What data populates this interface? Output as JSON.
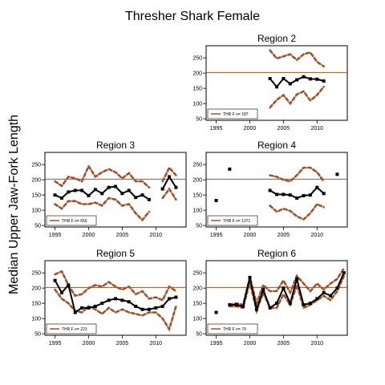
{
  "figure": {
    "title": "Thresher Shark Female",
    "ylabel": "Median Upper Jaw-Fork Length"
  },
  "colors": {
    "median": "#000000",
    "ci": "#a0522d",
    "reference_line": "#a0522d",
    "frame": "#000000"
  },
  "chart_data": [
    {
      "type": "line",
      "title": "Region 2",
      "legend": "THR F n= 187",
      "legend_position": "bottom-left",
      "xlim": [
        1993.5,
        2014.5
      ],
      "ylim": [
        45,
        290
      ],
      "xticks": [
        1995,
        2000,
        2005,
        2010
      ],
      "yticks": [
        50,
        100,
        150,
        200,
        250
      ],
      "reference_y": 202,
      "median": {
        "x": [
          2003,
          2004,
          2005,
          2006,
          2007,
          2008,
          2009,
          2010,
          2011
        ],
        "y": [
          182,
          155,
          182,
          165,
          178,
          188,
          181,
          180,
          174
        ]
      },
      "ci_upper": {
        "x": [
          2003,
          2004,
          2005,
          2006,
          2007,
          2008,
          2009,
          2010,
          2011
        ],
        "y": [
          275,
          248,
          255,
          262,
          243,
          262,
          268,
          237,
          222
        ]
      },
      "ci_lower": {
        "x": [
          2003,
          2004,
          2005,
          2006,
          2007,
          2008,
          2009,
          2010,
          2011
        ],
        "y": [
          87,
          112,
          128,
          100,
          130,
          140,
          110,
          128,
          155
        ]
      }
    },
    {
      "type": "line",
      "title": "Region 3",
      "legend": "THR F n= 656",
      "legend_position": "bottom-left",
      "xlim": [
        1993.5,
        2014.5
      ],
      "ylim": [
        45,
        290
      ],
      "xticks": [
        1995,
        2000,
        2005,
        2010
      ],
      "yticks": [
        50,
        100,
        150,
        200,
        250
      ],
      "reference_y": 202,
      "median": {
        "x": [
          1995,
          1996,
          1997,
          1998,
          1999,
          2000,
          2001,
          2002,
          2003,
          2004,
          2005,
          2006,
          2007,
          2008,
          2009,
          null,
          2011,
          2012,
          2013
        ],
        "y": [
          150,
          140,
          160,
          165,
          165,
          148,
          168,
          155,
          175,
          178,
          155,
          165,
          142,
          150,
          135,
          null,
          170,
          210,
          175
        ]
      },
      "ci_upper": {
        "x": [
          1995,
          1996,
          1997,
          1998,
          1999,
          2000,
          2001,
          2002,
          2003,
          2004,
          2005,
          2006,
          2007,
          2008,
          2009,
          null,
          2011,
          2012,
          2013
        ],
        "y": [
          195,
          180,
          210,
          205,
          195,
          245,
          210,
          225,
          235,
          225,
          205,
          222,
          195,
          195,
          175,
          null,
          195,
          240,
          215
        ]
      },
      "ci_lower": {
        "x": [
          1995,
          1996,
          1997,
          1998,
          1999,
          2000,
          2001,
          2002,
          2003,
          2004,
          2005,
          2006,
          2007,
          2008,
          2009,
          null,
          2011,
          2012,
          2013
        ],
        "y": [
          120,
          105,
          130,
          130,
          120,
          120,
          125,
          115,
          140,
          135,
          115,
          120,
          90,
          68,
          95,
          null,
          140,
          170,
          135
        ]
      }
    },
    {
      "type": "line",
      "title": "Region 4",
      "legend": "THR F n= 1371",
      "legend_position": "bottom-left",
      "xlim": [
        1993.5,
        2014.5
      ],
      "ylim": [
        45,
        290
      ],
      "xticks": [
        1995,
        2000,
        2005,
        2010
      ],
      "yticks": [
        50,
        100,
        150,
        200,
        250
      ],
      "reference_y": 202,
      "points": {
        "x": [
          1995,
          1997,
          2013
        ],
        "y": [
          132,
          235,
          218
        ]
      },
      "median": {
        "x": [
          2003,
          2004,
          2005,
          2006,
          2007,
          2008,
          2009,
          2010,
          2011
        ],
        "y": [
          165,
          152,
          152,
          150,
          140,
          148,
          150,
          175,
          155
        ]
      },
      "ci_upper": {
        "x": [
          2003,
          2004,
          2005,
          2006,
          2007,
          2008,
          2009,
          2010,
          2011
        ],
        "y": [
          215,
          210,
          200,
          195,
          215,
          240,
          240,
          225,
          195
        ]
      },
      "ci_lower": {
        "x": [
          2003,
          2004,
          2005,
          2006,
          2007,
          2008,
          2009,
          2010,
          2011
        ],
        "y": [
          115,
          95,
          105,
          98,
          80,
          70,
          90,
          120,
          110
        ]
      }
    },
    {
      "type": "line",
      "title": "Region 5",
      "legend": "THR F n= 223",
      "legend_position": "bottom-left",
      "xlim": [
        1993.5,
        2014.5
      ],
      "ylim": [
        45,
        290
      ],
      "xticks": [
        1995,
        2000,
        2005,
        2010
      ],
      "yticks": [
        50,
        100,
        150,
        200,
        250
      ],
      "reference_y": 202,
      "median": {
        "x": [
          1995,
          1996,
          1997,
          1998,
          1999,
          2000,
          2001,
          2002,
          2003,
          2004,
          2005,
          2006,
          2007,
          2008,
          2009,
          2010,
          2011,
          2012,
          2013
        ],
        "y": [
          225,
          185,
          210,
          120,
          135,
          135,
          140,
          150,
          160,
          165,
          160,
          155,
          140,
          130,
          130,
          135,
          140,
          165,
          170
        ]
      },
      "ci_upper": {
        "x": [
          1995,
          1996,
          1997,
          1998,
          1999,
          2000,
          2001,
          2002,
          2003,
          2004,
          2005,
          2006,
          2007,
          2008,
          2009,
          2010,
          2011,
          2012,
          2013
        ],
        "y": [
          245,
          255,
          210,
          175,
          180,
          200,
          210,
          205,
          220,
          205,
          195,
          205,
          180,
          190,
          165,
          170,
          160,
          205,
          190
        ]
      },
      "ci_lower": {
        "x": [
          1995,
          1996,
          1997,
          1998,
          1999,
          2000,
          2001,
          2002,
          2003,
          2004,
          2005,
          2006,
          2007,
          2008,
          2009,
          2010,
          2011,
          2012,
          2013
        ],
        "y": [
          195,
          165,
          150,
          125,
          120,
          140,
          130,
          115,
          135,
          120,
          130,
          120,
          115,
          110,
          120,
          120,
          100,
          65,
          140
        ]
      }
    },
    {
      "type": "line",
      "title": "Region 6",
      "legend": "THR F n= 79",
      "legend_position": "bottom-left",
      "xlim": [
        1993.5,
        2014.5
      ],
      "ylim": [
        45,
        290
      ],
      "xticks": [
        1995,
        2000,
        2005,
        2010
      ],
      "yticks": [
        50,
        100,
        150,
        200,
        250
      ],
      "reference_y": 202,
      "points": {
        "x": [
          1995
        ],
        "y": [
          120
        ]
      },
      "median": {
        "x": [
          1997,
          1998,
          1999,
          2000,
          2001,
          2002,
          2003,
          2004,
          2005,
          2006,
          2007,
          2008,
          2009,
          2010,
          2011,
          2012,
          2013,
          2014
        ],
        "y": [
          145,
          145,
          140,
          235,
          130,
          195,
          135,
          150,
          200,
          150,
          230,
          145,
          150,
          165,
          185,
          175,
          200,
          250
        ]
      },
      "ci_upper": {
        "x": [
          1997,
          1998,
          1999,
          2000,
          2001,
          2002,
          2003,
          2004,
          2005,
          2006,
          2007,
          2008,
          2009,
          2010,
          2011,
          2012,
          2013,
          2014
        ],
        "y": [
          145,
          150,
          145,
          235,
          150,
          210,
          190,
          190,
          225,
          185,
          240,
          215,
          190,
          215,
          195,
          215,
          230,
          265
        ]
      },
      "ci_lower": {
        "x": [
          1997,
          1998,
          1999,
          2000,
          2001,
          2002,
          2003,
          2004,
          2005,
          2006,
          2007,
          2008,
          2009,
          2010,
          2011,
          2012,
          2013,
          2014
        ],
        "y": [
          140,
          140,
          135,
          220,
          125,
          185,
          135,
          135,
          180,
          145,
          210,
          135,
          145,
          160,
          175,
          160,
          190,
          240
        ]
      }
    }
  ]
}
